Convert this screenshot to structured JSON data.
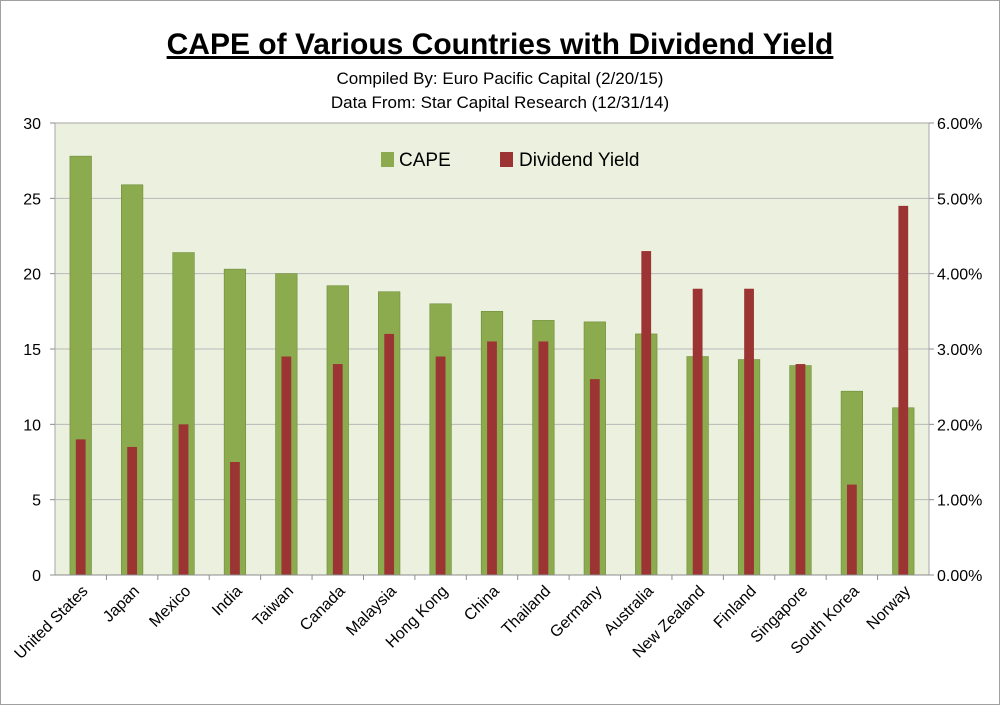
{
  "header": {
    "title": "CAPE of Various Countries with Dividend Yield",
    "subtitle_1": "Compiled By: Euro Pacific Capital (2/20/15)",
    "subtitle_2": "Data From: Star Capital Research (12/31/14)"
  },
  "legend": {
    "cape_label": "CAPE",
    "dividend_label": "Dividend Yield",
    "position": "top-center"
  },
  "colors": {
    "cape": "#8bab4e",
    "cape_border": "#6f8c3a",
    "dividend": "#9b3432",
    "plot_background": "#ebf1de",
    "gridline": "#b9b9b9"
  },
  "chart_data": {
    "type": "bar",
    "title": "CAPE of Various Countries with Dividend Yield",
    "categories": [
      "United States",
      "Japan",
      "Mexico",
      "India",
      "Taiwan",
      "Canada",
      "Malaysia",
      "Hong Kong",
      "China",
      "Thailand",
      "Germany",
      "Australia",
      "New Zealand",
      "Finland",
      "Singapore",
      "South Korea",
      "Norway"
    ],
    "series": [
      {
        "name": "CAPE",
        "axis": "left",
        "values": [
          27.8,
          25.9,
          21.4,
          20.3,
          20.0,
          19.2,
          18.8,
          18.0,
          17.5,
          16.9,
          16.8,
          16.0,
          14.5,
          14.3,
          13.9,
          12.2,
          11.1
        ]
      },
      {
        "name": "Dividend Yield",
        "axis": "right",
        "values": [
          0.018,
          0.017,
          0.02,
          0.015,
          0.029,
          0.028,
          0.032,
          0.029,
          0.031,
          0.031,
          0.026,
          0.043,
          0.038,
          0.038,
          0.028,
          0.012,
          0.049
        ]
      }
    ],
    "ylim": [
      0,
      30
    ],
    "yticks": [
      "0",
      "5",
      "10",
      "15",
      "20",
      "25",
      "30"
    ],
    "y2lim": [
      0,
      0.06
    ],
    "y2ticks": [
      "0.00%",
      "1.00%",
      "2.00%",
      "3.00%",
      "4.00%",
      "5.00%",
      "6.00%"
    ],
    "grid": true
  }
}
